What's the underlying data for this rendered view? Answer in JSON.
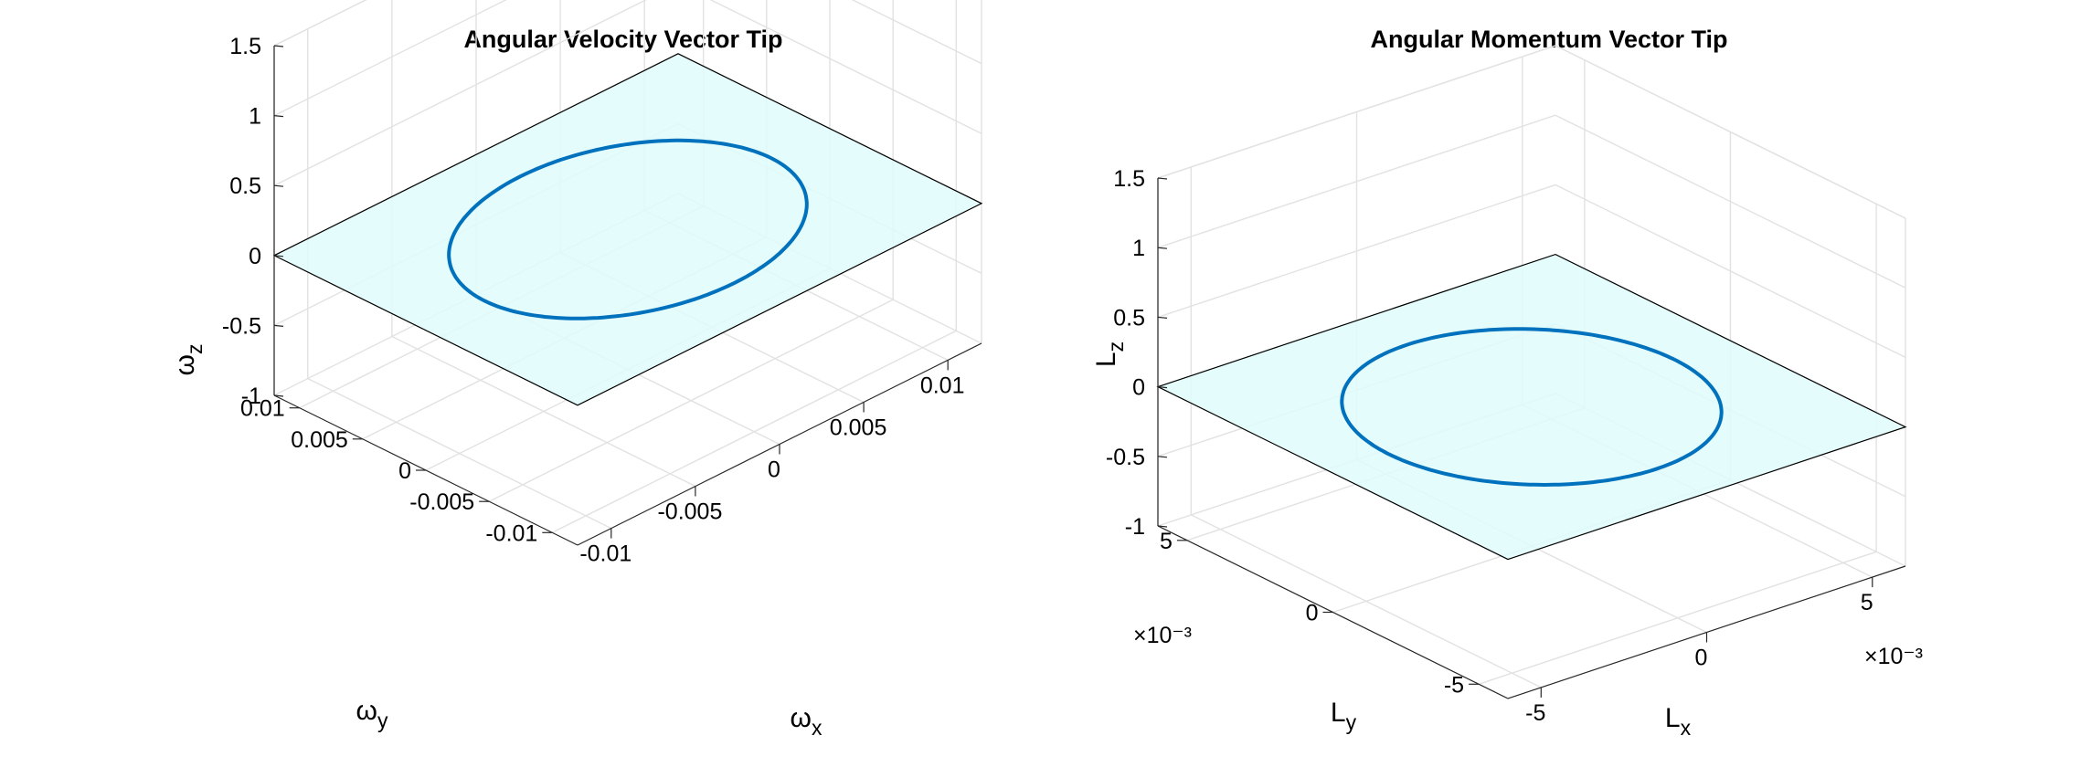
{
  "chart_data": [
    {
      "type": "line",
      "subtype": "3d",
      "title": "Angular Velocity Vector Tip",
      "xlabel": "ω_x",
      "ylabel": "ω_y",
      "zlabel": "ω_z",
      "xlabel_main": "ω",
      "xlabel_sub": "x",
      "ylabel_main": "ω",
      "ylabel_sub": "y",
      "zlabel_main": "ω",
      "zlabel_sub": "z",
      "xlim": [
        -0.012,
        0.012
      ],
      "ylim": [
        -0.012,
        0.012
      ],
      "zlim": [
        -1,
        1.5
      ],
      "xticks": [
        -0.01,
        -0.005,
        0,
        0.005,
        0.01
      ],
      "xtick_labels": [
        "-0.01",
        "-0.005",
        "0",
        "0.005",
        "0.01"
      ],
      "yticks": [
        -0.01,
        -0.005,
        0,
        0.005,
        0.01
      ],
      "ytick_labels": [
        "-0.01",
        "-0.005",
        "0",
        "0.005",
        "0.01"
      ],
      "zticks": [
        -1,
        -0.5,
        0,
        0.5,
        1,
        1.5
      ],
      "ztick_labels": [
        "-1",
        "-0.5",
        "0",
        "0.5",
        "1",
        "1.5"
      ],
      "exponent_label": "",
      "grid": true,
      "plane": {
        "z": 0,
        "fill": "#e0fbfb",
        "edge": "#000000"
      },
      "series": [
        {
          "curve": "circle",
          "center": [
            0,
            0,
            0
          ],
          "radius": 0.0085,
          "color": "#0072BD"
        }
      ]
    },
    {
      "type": "line",
      "subtype": "3d",
      "title": "Angular Momentum Vector Tip",
      "xlabel": "L_x",
      "ylabel": "L_y",
      "zlabel": "L_z",
      "xlabel_main": "L",
      "xlabel_sub": "x",
      "ylabel_main": "L",
      "ylabel_sub": "y",
      "zlabel_main": "L",
      "zlabel_sub": "z",
      "xlim": [
        -0.006,
        0.006
      ],
      "ylim": [
        -0.006,
        0.006
      ],
      "zlim": [
        -1,
        1.5
      ],
      "xticks": [
        -0.005,
        0,
        0.005
      ],
      "xtick_labels": [
        "-5",
        "0",
        "5"
      ],
      "yticks": [
        -0.005,
        0,
        0.005
      ],
      "ytick_labels": [
        "-5",
        "0",
        "5"
      ],
      "zticks": [
        -1,
        -0.5,
        0,
        0.5,
        1,
        1.5
      ],
      "ztick_labels": [
        "-1",
        "-0.5",
        "0",
        "0.5",
        "1",
        "1.5"
      ],
      "exponent_label": "×10⁻³",
      "grid": true,
      "plane": {
        "z": 0,
        "fill": "#e0fbfb",
        "edge": "#000000"
      },
      "series": [
        {
          "curve": "circle",
          "center": [
            0,
            0,
            0
          ],
          "radius": 0.0043,
          "color": "#0072BD"
        }
      ]
    }
  ]
}
